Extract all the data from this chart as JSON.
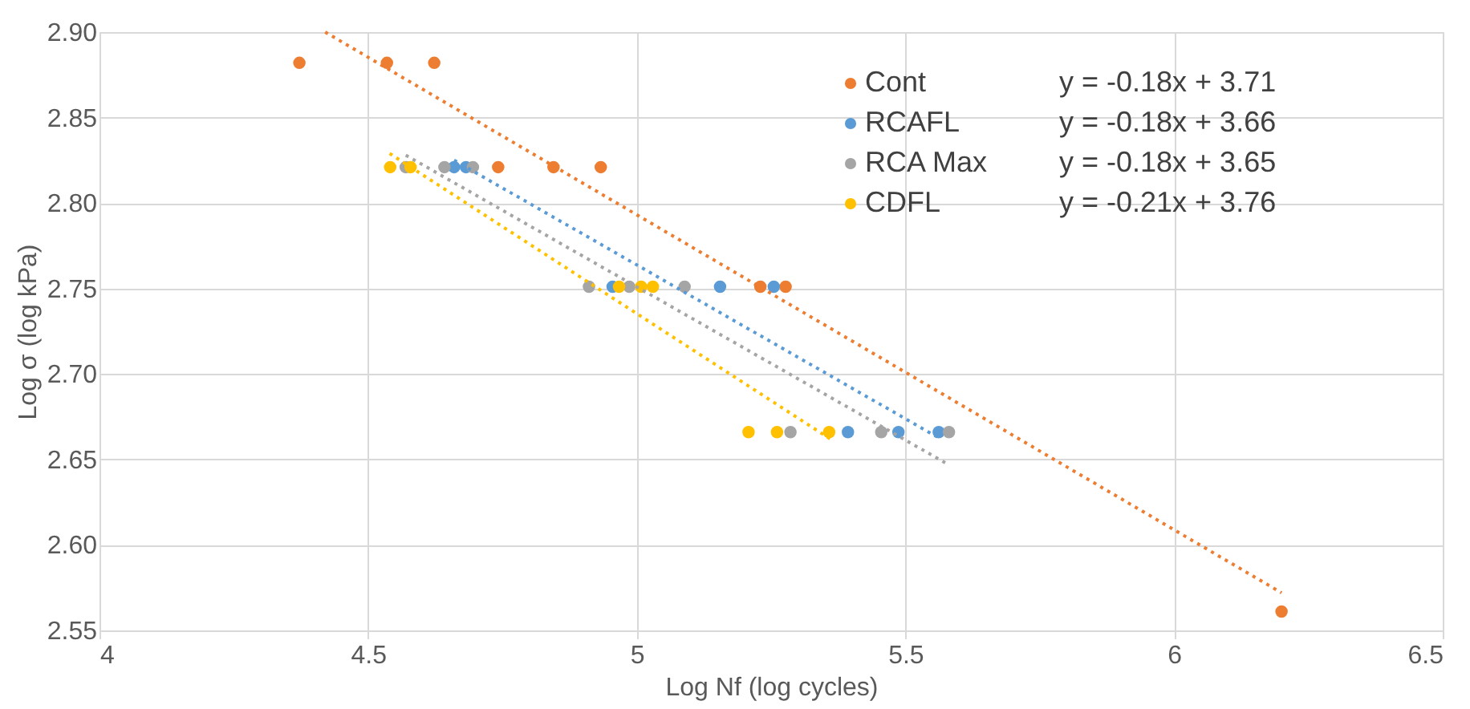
{
  "chart_data": {
    "type": "scatter",
    "xlabel": "Log Nf (log cycles)",
    "ylabel": "Log σ (log kPa)",
    "xlim": [
      4,
      6.5
    ],
    "xticks": [
      4,
      4.5,
      5,
      5.5,
      6,
      6.5
    ],
    "ylim": [
      2.55,
      2.9
    ],
    "yticks": [
      2.55,
      {
        "value": 2.6,
        "label": "2.60"
      },
      2.65,
      {
        "value": 2.7,
        "label": "2.70"
      },
      2.75,
      {
        "value": 2.8,
        "label": "2.80"
      },
      2.85,
      {
        "value": 2.9,
        "label": "2.90"
      }
    ],
    "grid": true,
    "legend": "top right",
    "marker": "circle",
    "annotations": [
      "y = -0.18x + 3.71",
      "y = -0.18x + 3.66",
      "y = -0.18x + 3.65",
      "y = -0.21x + 3.76"
    ],
    "series": [
      {
        "name": "Cont",
        "color": "#ed7d31",
        "x": [
          4.372,
          4.535,
          4.623,
          4.742,
          4.845,
          4.933,
          5.23,
          5.277,
          6.2
        ],
        "values": [
          2.882,
          2.882,
          2.882,
          2.821,
          2.821,
          2.821,
          2.751,
          2.751,
          2.561
        ]
      },
      {
        "name": "RCAFL",
        "color": "#5b9bd5",
        "x": [
          4.66,
          4.682,
          4.955,
          5.155,
          5.255,
          5.393,
          5.487,
          5.562
        ],
        "values": [
          2.821,
          2.821,
          2.751,
          2.751,
          2.751,
          2.666,
          2.666,
          2.666
        ]
      },
      {
        "name": "RCA Max",
        "color": "#a5a5a5",
        "x": [
          4.57,
          4.642,
          4.695,
          4.911,
          4.986,
          5.089,
          5.286,
          5.455,
          5.581
        ],
        "values": [
          2.821,
          2.821,
          2.821,
          2.751,
          2.751,
          2.751,
          2.666,
          2.666,
          2.666
        ]
      },
      {
        "name": "CDFL",
        "color": "#ffc000",
        "x": [
          4.541,
          4.579,
          4.967,
          5.008,
          5.03,
          5.208,
          5.261,
          5.358
        ],
        "values": [
          2.821,
          2.821,
          2.751,
          2.751,
          2.751,
          2.666,
          2.666,
          2.666
        ]
      },
      {
        "type": "line",
        "line_style": "dotted",
        "marker": "none",
        "color": "#ed7d31",
        "x": [
          4.42,
          6.2
        ],
        "values": [
          2.9,
          2.572
        ]
      },
      {
        "type": "line",
        "line_style": "dotted",
        "marker": "none",
        "color": "#5b9bd5",
        "x": [
          4.66,
          5.56
        ],
        "values": [
          2.825,
          2.663
        ]
      },
      {
        "type": "line",
        "line_style": "dotted",
        "marker": "none",
        "color": "#a5a5a5",
        "x": [
          4.57,
          5.58
        ],
        "values": [
          2.828,
          2.647
        ]
      },
      {
        "type": "line",
        "line_style": "dotted",
        "marker": "none",
        "color": "#ffc000",
        "x": [
          4.54,
          5.36
        ],
        "values": [
          2.829,
          2.662
        ]
      }
    ]
  }
}
